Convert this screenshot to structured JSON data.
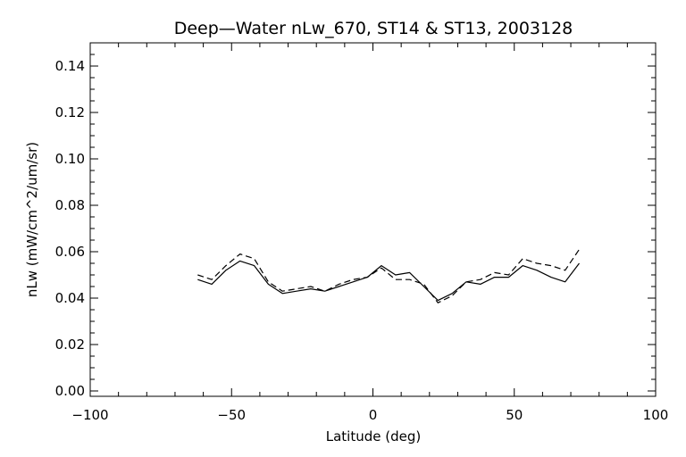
{
  "chart_data": {
    "type": "line",
    "title": "Deep—Water nLw_670, ST14 & ST13, 2003128",
    "xlabel": "Latitude (deg)",
    "ylabel": "nLw (mW/cm^2/um/sr)",
    "xlim": [
      -100,
      100
    ],
    "ylim": [
      0.0,
      0.15
    ],
    "x_ticks": [
      "−100",
      "−50",
      "0",
      "50",
      "100"
    ],
    "y_ticks": [
      "0.00",
      "0.02",
      "0.04",
      "0.06",
      "0.08",
      "0.10",
      "0.12",
      "0.14"
    ],
    "grid": false,
    "series": [
      {
        "style": "solid",
        "color": "#000000",
        "x": [
          -62,
          -57,
          -52,
          -47,
          -42,
          -37,
          -32,
          -27,
          -22,
          -17,
          -12,
          -7,
          -2,
          3,
          8,
          13,
          18,
          23,
          28,
          33,
          38,
          43,
          48,
          53,
          58,
          63,
          68,
          73
        ],
        "y": [
          0.048,
          0.046,
          0.052,
          0.056,
          0.054,
          0.046,
          0.042,
          0.043,
          0.044,
          0.043,
          0.045,
          0.047,
          0.049,
          0.054,
          0.05,
          0.051,
          0.045,
          0.039,
          0.042,
          0.047,
          0.046,
          0.049,
          0.049,
          0.054,
          0.052,
          0.049,
          0.047,
          0.055
        ]
      },
      {
        "style": "dashed",
        "color": "#000000",
        "x": [
          -62,
          -57,
          -52,
          -47,
          -42,
          -37,
          -32,
          -27,
          -22,
          -17,
          -12,
          -7,
          -2,
          3,
          8,
          13,
          18,
          23,
          28,
          33,
          38,
          43,
          48,
          53,
          58,
          63,
          68,
          73
        ],
        "y": [
          0.05,
          0.048,
          0.054,
          0.059,
          0.057,
          0.047,
          0.043,
          0.044,
          0.045,
          0.043,
          0.046,
          0.048,
          0.049,
          0.053,
          0.048,
          0.048,
          0.046,
          0.038,
          0.041,
          0.047,
          0.048,
          0.051,
          0.05,
          0.057,
          0.055,
          0.054,
          0.052,
          0.061
        ]
      }
    ]
  }
}
